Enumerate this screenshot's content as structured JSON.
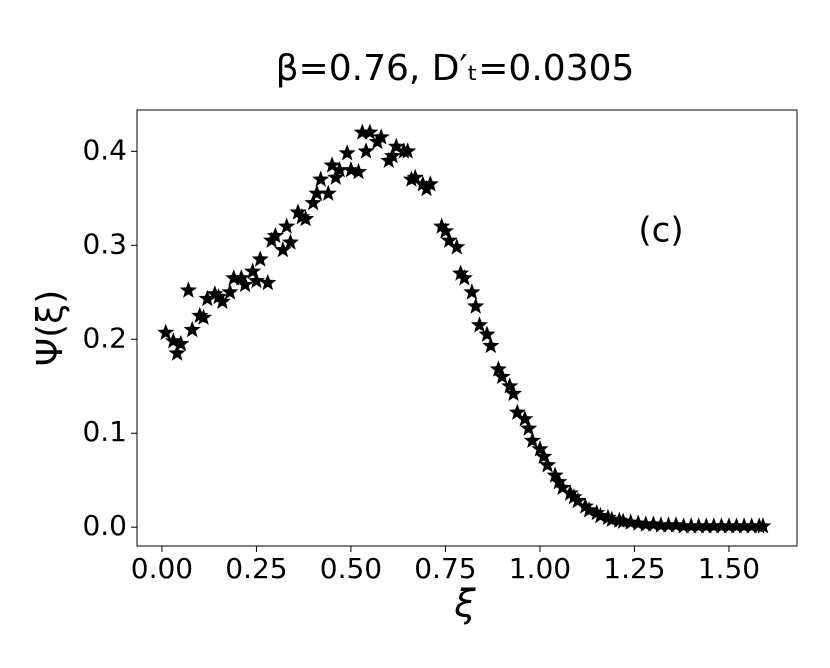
{
  "chart_data": {
    "type": "scatter",
    "title": "β=0.76, D′ₜ=0.0305",
    "xlabel": "ξ",
    "ylabel": "Ψ(ξ)",
    "annotation": "(c)",
    "marker": "star",
    "color": "#000000",
    "xlim": [
      -0.066,
      1.68
    ],
    "ylim": [
      -0.02,
      0.444
    ],
    "xticks": [
      {
        "value": 0,
        "label": "0.00"
      },
      0.25,
      {
        "value": 0.5,
        "label": "0.50"
      },
      0.75,
      {
        "value": 1,
        "label": "1.00"
      },
      1.25,
      {
        "value": 1.5,
        "label": "1.50"
      }
    ],
    "yticks": [
      {
        "value": 0,
        "label": "0.0"
      },
      0.1,
      0.2,
      0.3,
      0.4
    ],
    "series": [
      {
        "x": [
          0.01,
          0.03,
          0.04,
          0.05,
          0.07,
          0.08,
          0.1,
          0.11,
          0.12,
          0.14,
          0.15,
          0.16,
          0.18,
          0.19,
          0.21,
          0.22,
          0.24,
          0.25,
          0.26,
          0.28,
          0.29,
          0.3,
          0.32,
          0.33,
          0.34,
          0.36,
          0.37,
          0.38,
          0.4,
          0.41,
          0.42,
          0.44,
          0.45,
          0.46,
          0.47,
          0.49,
          0.5,
          0.52,
          0.53,
          0.54,
          0.55,
          0.57,
          0.58,
          0.6,
          0.61,
          0.62,
          0.64,
          0.65,
          0.66,
          0.67,
          0.69,
          0.7,
          0.71,
          0.74,
          0.75,
          0.76,
          0.78,
          0.79,
          0.8,
          0.82,
          0.83,
          0.84,
          0.86,
          0.87,
          0.89,
          0.9,
          0.92,
          0.93,
          0.94,
          0.96,
          0.97,
          0.98,
          1.0,
          1.01,
          1.02,
          1.04,
          1.05,
          1.06,
          1.08,
          1.09,
          1.1,
          1.12,
          1.13,
          1.15,
          1.16,
          1.18,
          1.19,
          1.21,
          1.22,
          1.24,
          1.26,
          1.28,
          1.3,
          1.32,
          1.34,
          1.36,
          1.38,
          1.4,
          1.42,
          1.44,
          1.46,
          1.48,
          1.5,
          1.52,
          1.54,
          1.56,
          1.58,
          1.59
        ],
        "values": [
          0.207,
          0.198,
          0.185,
          0.195,
          0.252,
          0.21,
          0.225,
          0.223,
          0.243,
          0.248,
          0.245,
          0.24,
          0.25,
          0.265,
          0.265,
          0.258,
          0.272,
          0.262,
          0.285,
          0.26,
          0.305,
          0.31,
          0.295,
          0.32,
          0.303,
          0.335,
          0.33,
          0.328,
          0.345,
          0.355,
          0.37,
          0.355,
          0.385,
          0.372,
          0.38,
          0.398,
          0.38,
          0.378,
          0.42,
          0.4,
          0.42,
          0.41,
          0.415,
          0.39,
          0.395,
          0.405,
          0.4,
          0.4,
          0.37,
          0.372,
          0.365,
          0.36,
          0.365,
          0.32,
          0.315,
          0.305,
          0.298,
          0.27,
          0.265,
          0.25,
          0.235,
          0.215,
          0.205,
          0.193,
          0.168,
          0.16,
          0.15,
          0.142,
          0.122,
          0.115,
          0.105,
          0.092,
          0.083,
          0.075,
          0.066,
          0.055,
          0.048,
          0.042,
          0.036,
          0.032,
          0.028,
          0.022,
          0.018,
          0.015,
          0.012,
          0.01,
          0.008,
          0.007,
          0.006,
          0.005,
          0.004,
          0.003,
          0.003,
          0.002,
          0.002,
          0.002,
          0.001,
          0.001,
          0.001,
          0.001,
          0.001,
          0.001,
          0.001,
          0.001,
          0.001,
          0.001,
          0.001,
          0.001
        ]
      }
    ]
  }
}
